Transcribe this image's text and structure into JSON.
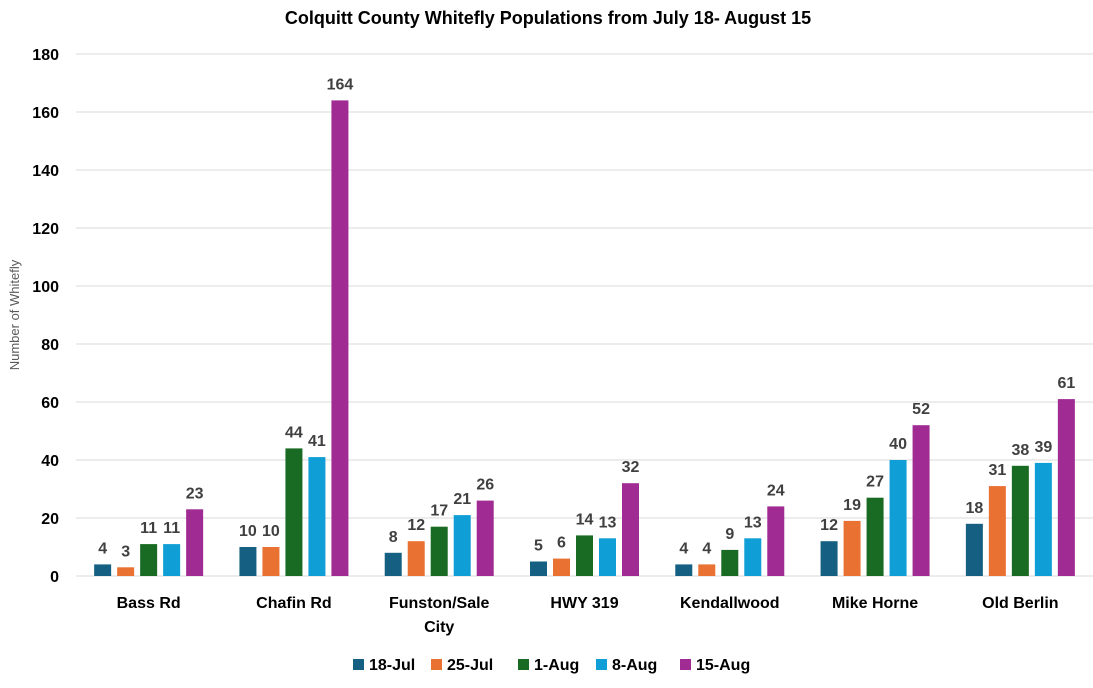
{
  "chart_data": {
    "type": "bar",
    "title": "Colquitt County Whitefly Populations from July 18- August 15",
    "xlabel": "",
    "ylabel": "Number of Whitefly",
    "ylim": [
      0,
      180
    ],
    "yticks": [
      0,
      20,
      40,
      60,
      80,
      100,
      120,
      140,
      160,
      180
    ],
    "grid": true,
    "legend_position": "bottom",
    "categories": [
      "Bass Rd",
      "Chafin Rd",
      "Funston/Sale City",
      "HWY 319",
      "Kendallwood",
      "Mike Horne",
      "Old Berlin"
    ],
    "category_lines": [
      [
        "Bass Rd"
      ],
      [
        "Chafin Rd"
      ],
      [
        "Funston/Sale",
        "City"
      ],
      [
        "HWY 319"
      ],
      [
        "Kendallwood"
      ],
      [
        "Mike Horne"
      ],
      [
        "Old Berlin"
      ]
    ],
    "series": [
      {
        "name": "18-Jul",
        "color": "#156082",
        "values": [
          4,
          10,
          8,
          5,
          4,
          12,
          18
        ]
      },
      {
        "name": "25-Jul",
        "color": "#E97132",
        "values": [
          3,
          10,
          12,
          6,
          4,
          19,
          31
        ]
      },
      {
        "name": "1-Aug",
        "color": "#196B24",
        "values": [
          11,
          44,
          17,
          14,
          9,
          27,
          38
        ]
      },
      {
        "name": "8-Aug",
        "color": "#0F9ED5",
        "values": [
          11,
          41,
          21,
          13,
          13,
          40,
          39
        ]
      },
      {
        "name": "15-Aug",
        "color": "#A02B93",
        "values": [
          23,
          164,
          26,
          32,
          24,
          52,
          61
        ]
      }
    ]
  }
}
